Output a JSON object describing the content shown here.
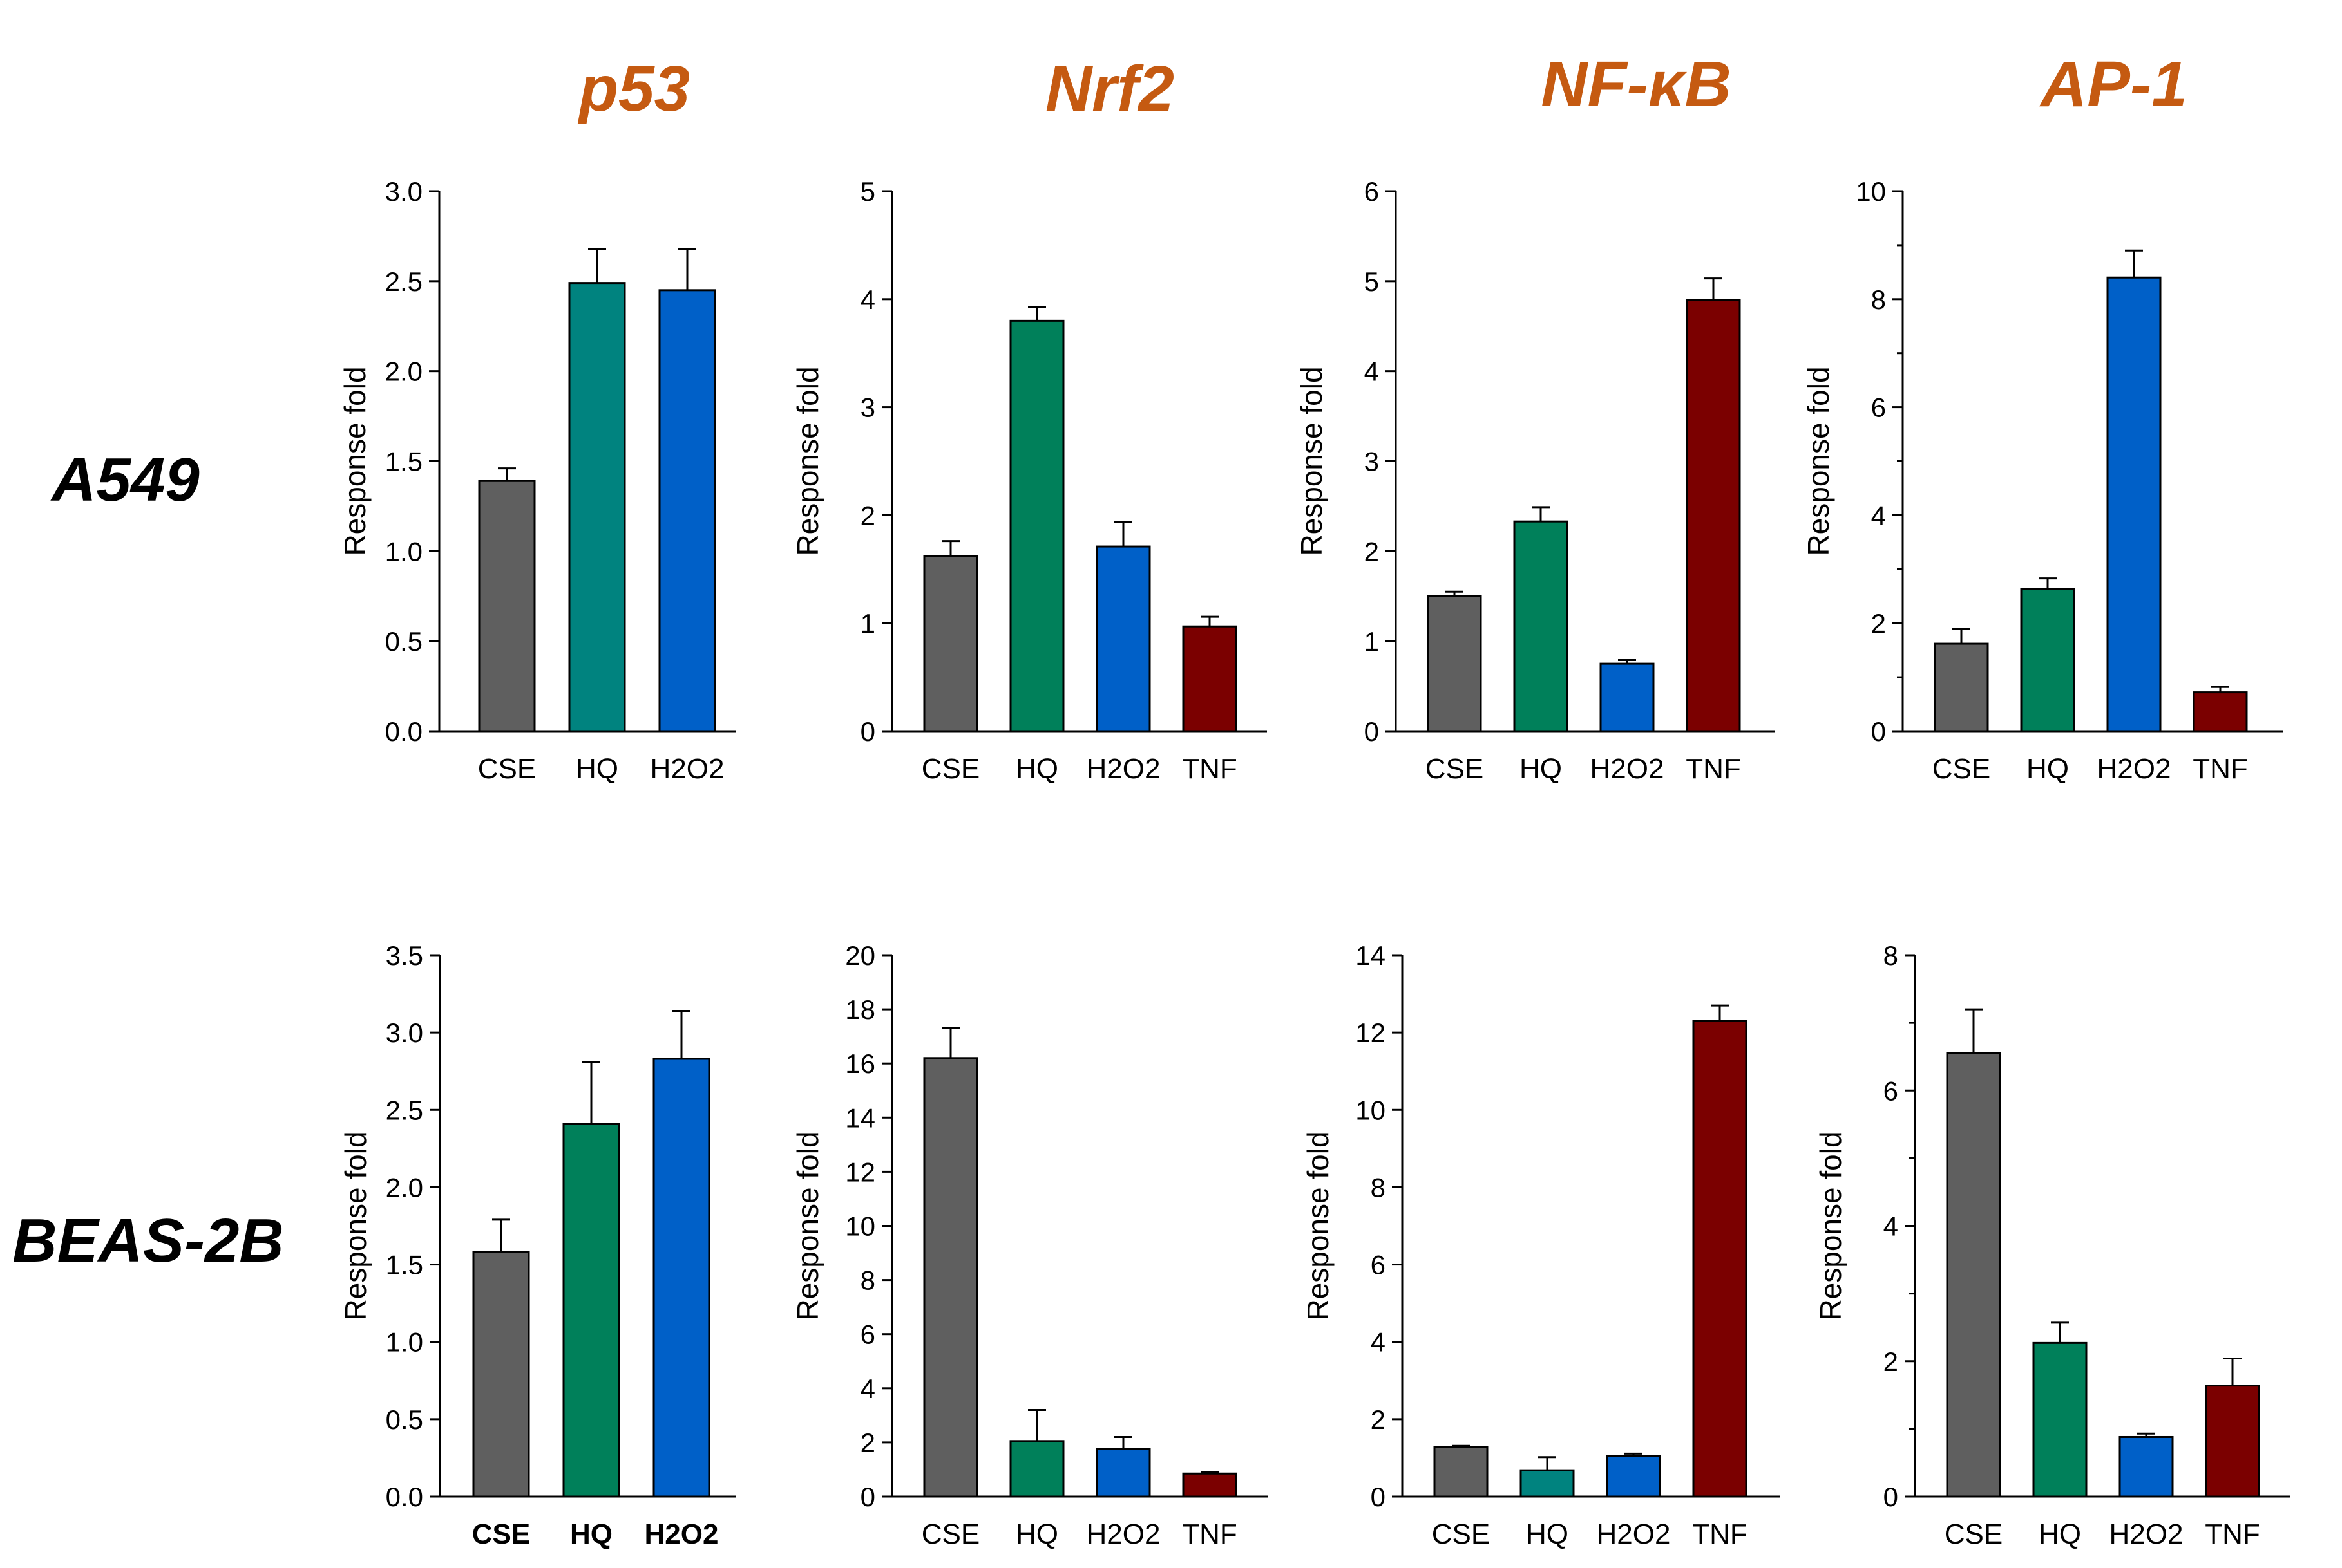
{
  "column_titles": [
    "p53",
    "Nrf2",
    "NF-κB",
    "AP-1"
  ],
  "row_titles": [
    "A549",
    "BEAS-2B"
  ],
  "colors": {
    "CSE": "#5f5f5f",
    "HQ_teal": "#00837f",
    "HQ_green": "#00805a",
    "H2O2": "#0060c8",
    "TNF": "#7b0000",
    "title": "#c55a11"
  },
  "chart_data": [
    {
      "type": "bar",
      "panel": "p53 / A549",
      "ylabel": "Response fold",
      "ylim": [
        0,
        3.0
      ],
      "yticks": [
        "0.0",
        "0.5",
        "1.0",
        "1.5",
        "2.0",
        "2.5",
        "3.0"
      ],
      "categories": [
        "CSE",
        "HQ",
        "H2O2"
      ],
      "values": [
        1.39,
        2.49,
        2.45
      ],
      "errors": [
        0.07,
        0.19,
        0.23
      ],
      "bar_colors": [
        "CSE",
        "HQ_teal",
        "H2O2"
      ],
      "bold_categories": false
    },
    {
      "type": "bar",
      "panel": "Nrf2 / A549",
      "ylabel": "Response fold",
      "ylim": [
        0,
        5
      ],
      "yticks": [
        "0",
        "1",
        "2",
        "3",
        "4",
        "5"
      ],
      "categories": [
        "CSE",
        "HQ",
        "H2O2",
        "TNF"
      ],
      "values": [
        1.62,
        3.8,
        1.71,
        0.97
      ],
      "errors": [
        0.14,
        0.13,
        0.23,
        0.09
      ],
      "bar_colors": [
        "CSE",
        "HQ_green",
        "H2O2",
        "TNF"
      ],
      "bold_categories": false
    },
    {
      "type": "bar",
      "panel": "NF-κB / A549",
      "ylabel": "Response fold",
      "ylim": [
        0,
        6
      ],
      "yticks": [
        "0",
        "1",
        "2",
        "3",
        "4",
        "5",
        "6"
      ],
      "categories": [
        "CSE",
        "HQ",
        "H2O2",
        "TNF"
      ],
      "values": [
        1.5,
        2.33,
        0.75,
        4.79
      ],
      "errors": [
        0.05,
        0.16,
        0.04,
        0.24
      ],
      "bar_colors": [
        "CSE",
        "HQ_green",
        "H2O2",
        "TNF"
      ],
      "bold_categories": false
    },
    {
      "type": "bar",
      "panel": "AP-1 / A549",
      "ylabel": "Response fold",
      "ylim": [
        0,
        10
      ],
      "yticks": [
        "0",
        "2",
        "4",
        "6",
        "8",
        "10"
      ],
      "yticks_minor": 5,
      "categories": [
        "CSE",
        "HQ",
        "H2O2",
        "TNF"
      ],
      "values": [
        1.62,
        2.63,
        8.4,
        0.72
      ],
      "errors": [
        0.28,
        0.2,
        0.5,
        0.1
      ],
      "bar_colors": [
        "CSE",
        "HQ_green",
        "H2O2",
        "TNF"
      ],
      "bold_categories": false
    },
    {
      "type": "bar",
      "panel": "p53 / BEAS-2B",
      "ylabel": "Response fold",
      "ylim": [
        0,
        3.5
      ],
      "yticks": [
        "0.0",
        "0.5",
        "1.0",
        "1.5",
        "2.0",
        "2.5",
        "3.0",
        "3.5"
      ],
      "categories": [
        "CSE",
        "HQ",
        "H2O2"
      ],
      "values": [
        1.58,
        2.41,
        2.83
      ],
      "errors": [
        0.21,
        0.4,
        0.31
      ],
      "bar_colors": [
        "CSE",
        "HQ_green",
        "H2O2"
      ],
      "bold_categories": true
    },
    {
      "type": "bar",
      "panel": "Nrf2 / BEAS-2B",
      "ylabel": "Response fold",
      "ylim": [
        0,
        20
      ],
      "yticks": [
        "0",
        "2",
        "4",
        "6",
        "8",
        "10",
        "12",
        "14",
        "16",
        "18",
        "20"
      ],
      "categories": [
        "CSE",
        "HQ",
        "H2O2",
        "TNF"
      ],
      "values": [
        16.2,
        2.05,
        1.75,
        0.85
      ],
      "errors": [
        1.1,
        1.15,
        0.45,
        0.05
      ],
      "bar_colors": [
        "CSE",
        "HQ_green",
        "H2O2",
        "TNF"
      ],
      "bold_categories": false
    },
    {
      "type": "bar",
      "panel": "NF-κB / BEAS-2B",
      "ylabel": "Response fold",
      "ylim": [
        0,
        14
      ],
      "yticks": [
        "0",
        "2",
        "4",
        "6",
        "8",
        "10",
        "12",
        "14"
      ],
      "categories": [
        "CSE",
        "HQ",
        "H2O2",
        "TNF"
      ],
      "values": [
        1.28,
        0.68,
        1.05,
        12.3
      ],
      "errors": [
        0.03,
        0.34,
        0.06,
        0.4
      ],
      "bar_colors": [
        "CSE",
        "HQ_teal",
        "H2O2",
        "TNF"
      ],
      "bold_categories": false
    },
    {
      "type": "bar",
      "panel": "AP-1 / BEAS-2B",
      "ylabel": "Response fold",
      "ylim": [
        0,
        8
      ],
      "yticks": [
        "0",
        "2",
        "4",
        "6",
        "8"
      ],
      "yticks_minor": 4,
      "categories": [
        "CSE",
        "HQ",
        "H2O2",
        "TNF"
      ],
      "values": [
        6.55,
        2.27,
        0.88,
        1.64
      ],
      "errors": [
        0.65,
        0.3,
        0.05,
        0.4
      ],
      "bar_colors": [
        "CSE",
        "HQ_green",
        "H2O2",
        "TNF"
      ],
      "bold_categories": false
    }
  ]
}
